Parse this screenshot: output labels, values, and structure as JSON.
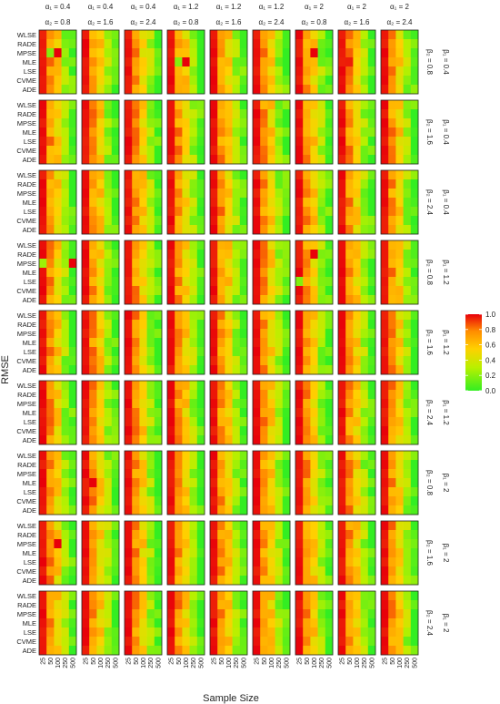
{
  "chart_data": {
    "type": "heatmap",
    "title": "",
    "xlabel": "Sample Size",
    "ylabel": "RMSE",
    "x_categories": [
      "25",
      "50",
      "100",
      "250",
      "500"
    ],
    "y_categories": [
      "WLSE",
      "RADE",
      "MPSE",
      "MLE",
      "LSE",
      "CVME",
      "ADE"
    ],
    "facet_columns": [
      {
        "a1": "α₁ = 0.4",
        "a2": "α₂ = 0.8"
      },
      {
        "a1": "α₁ = 0.4",
        "a2": "α₂ = 1.6"
      },
      {
        "a1": "α₁ = 0.4",
        "a2": "α₂ = 2.4"
      },
      {
        "a1": "α₁ = 1.2",
        "a2": "α₂ = 0.8"
      },
      {
        "a1": "α₁ = 1.2",
        "a2": "α₂ = 1.6"
      },
      {
        "a1": "α₁ = 1.2",
        "a2": "α₂ = 2.4"
      },
      {
        "a1": "α₁ = 2",
        "a2": "α₂ = 0.8"
      },
      {
        "a1": "α₁ = 2",
        "a2": "α₂ = 1.6"
      },
      {
        "a1": "α₁ = 2",
        "a2": "α₂ = 2.4"
      }
    ],
    "facet_rows": [
      {
        "b1": "β₁ = 0.4",
        "b2": "β₂ = 0.8"
      },
      {
        "b1": "β₁ = 0.4",
        "b2": "β₂ = 1.6"
      },
      {
        "b1": "β₁ = 0.4",
        "b2": "β₂ = 2.4"
      },
      {
        "b1": "β₁ = 1.2",
        "b2": "β₂ = 0.8"
      },
      {
        "b1": "β₁ = 1.2",
        "b2": "β₂ = 1.6"
      },
      {
        "b1": "β₁ = 1.2",
        "b2": "β₂ = 2.4"
      },
      {
        "b1": "β₁ = 2",
        "b2": "β₂ = 0.8"
      },
      {
        "b1": "β₁ = 2",
        "b2": "β₂ = 1.6"
      },
      {
        "b1": "β₁ = 2",
        "b2": "β₂ = 2.4"
      }
    ],
    "color_scale": {
      "min": 0.0,
      "max": 1.0,
      "ticks": [
        "1.0",
        "0.8",
        "0.6",
        "0.4",
        "0.2",
        "0.0"
      ],
      "stops": [
        "#33ee22",
        "#b8f000",
        "#ffd000",
        "#ff8c00",
        "#e8000a"
      ],
      "low_color": "#33ee22",
      "high_color": "#e8000a"
    },
    "typical_column_profile": [
      0.97,
      0.7,
      0.5,
      0.22,
      0.05
    ],
    "outliers": [
      {
        "panel_row": 0,
        "panel_col": 0,
        "row": 2,
        "col": 1,
        "value": 0.15
      },
      {
        "panel_row": 0,
        "panel_col": 0,
        "row": 2,
        "col": 2,
        "value": 1.0
      },
      {
        "panel_row": 0,
        "panel_col": 0,
        "row": 2,
        "col": 3,
        "value": 0.2
      },
      {
        "panel_row": 0,
        "panel_col": 3,
        "row": 3,
        "col": 2,
        "value": 1.0
      },
      {
        "panel_row": 0,
        "panel_col": 3,
        "row": 3,
        "col": 1,
        "value": 0.15
      },
      {
        "panel_row": 0,
        "panel_col": 6,
        "row": 2,
        "col": 2,
        "value": 1.0
      },
      {
        "panel_row": 0,
        "panel_col": 7,
        "row": 3,
        "col": 1,
        "value": 0.95
      },
      {
        "panel_row": 3,
        "panel_col": 0,
        "row": 2,
        "col": 0,
        "value": 0.2
      },
      {
        "panel_row": 3,
        "panel_col": 0,
        "row": 2,
        "col": 4,
        "value": 1.0
      },
      {
        "panel_row": 3,
        "panel_col": 6,
        "row": 4,
        "col": 0,
        "value": 0.15
      },
      {
        "panel_row": 3,
        "panel_col": 6,
        "row": 1,
        "col": 2,
        "value": 1.0
      },
      {
        "panel_row": 6,
        "panel_col": 0,
        "row": 3,
        "col": 0,
        "value": 1.0
      },
      {
        "panel_row": 6,
        "panel_col": 1,
        "row": 3,
        "col": 1,
        "value": 1.0
      },
      {
        "panel_row": 7,
        "panel_col": 0,
        "row": 2,
        "col": 2,
        "value": 1.0
      }
    ]
  }
}
